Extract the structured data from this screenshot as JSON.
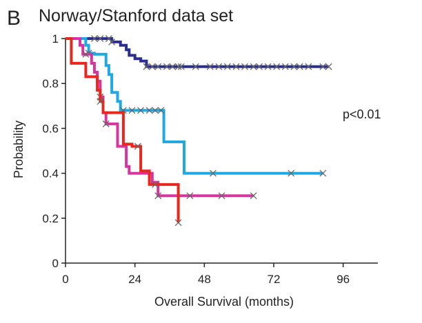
{
  "chart_data": {
    "type": "line",
    "panel_label": "B",
    "title": "Norway/Stanford data set",
    "xlabel": "Overall Survival (months)",
    "ylabel": "Probability",
    "xlim": [
      0,
      108
    ],
    "ylim": [
      0,
      1
    ],
    "x_ticks": [
      0,
      24,
      48,
      72,
      96
    ],
    "y_ticks": [
      0,
      0.2,
      0.4,
      0.6,
      0.8,
      1
    ],
    "y_tick_labels": [
      "0",
      "0.2",
      "0.4",
      "0.6",
      "0.8",
      "1"
    ],
    "annotation": "p<0.01",
    "grid": false,
    "series": [
      {
        "name": "navy",
        "color": "#2b2e8c",
        "steps": [
          [
            0,
            1
          ],
          [
            14,
            1
          ],
          [
            16,
            0.985
          ],
          [
            19,
            0.97
          ],
          [
            21,
            0.95
          ],
          [
            22,
            0.925
          ],
          [
            24,
            0.91
          ],
          [
            26,
            0.9
          ],
          [
            28,
            0.875
          ],
          [
            91,
            0.875
          ]
        ],
        "censored_x": [
          10,
          12,
          15,
          16,
          28,
          30,
          32,
          35,
          37,
          39,
          40,
          45,
          50,
          53,
          56,
          59,
          62,
          65,
          67,
          70,
          73,
          76,
          79,
          81,
          84,
          89,
          91
        ]
      },
      {
        "name": "light blue",
        "color": "#1ea9e1",
        "steps": [
          [
            0,
            1
          ],
          [
            7,
            0.97
          ],
          [
            8,
            0.935
          ],
          [
            10,
            0.93
          ],
          [
            13,
            0.93
          ],
          [
            14,
            0.88
          ],
          [
            15,
            0.84
          ],
          [
            16,
            0.76
          ],
          [
            18,
            0.72
          ],
          [
            19,
            0.68
          ],
          [
            34,
            0.54
          ],
          [
            41,
            0.4
          ],
          [
            89,
            0.4
          ]
        ],
        "censored_x": [
          8,
          20,
          23,
          26,
          29,
          31,
          33,
          51,
          78,
          89
        ]
      },
      {
        "name": "magenta",
        "color": "#d6359f",
        "steps": [
          [
            0,
            1
          ],
          [
            5,
            0.97
          ],
          [
            6,
            0.93
          ],
          [
            9,
            0.89
          ],
          [
            10,
            0.85
          ],
          [
            11,
            0.81
          ],
          [
            12,
            0.74
          ],
          [
            13,
            0.67
          ],
          [
            14,
            0.62
          ],
          [
            18,
            0.52
          ],
          [
            21,
            0.43
          ],
          [
            22,
            0.4
          ],
          [
            30,
            0.36
          ],
          [
            32,
            0.3
          ],
          [
            65,
            0.3
          ]
        ],
        "censored_x": [
          7,
          12,
          14,
          32,
          43,
          54,
          65
        ]
      },
      {
        "name": "red",
        "color": "#e8271f",
        "steps": [
          [
            0,
            1
          ],
          [
            2,
            0.89
          ],
          [
            7,
            0.83
          ],
          [
            11,
            0.77
          ],
          [
            12,
            0.72
          ],
          [
            13,
            0.67
          ],
          [
            20,
            0.53
          ],
          [
            23,
            0.52
          ],
          [
            26,
            0.41
          ],
          [
            29,
            0.35
          ],
          [
            39,
            0.18
          ]
        ],
        "censored_x": [
          12,
          25,
          31,
          39
        ]
      }
    ]
  }
}
